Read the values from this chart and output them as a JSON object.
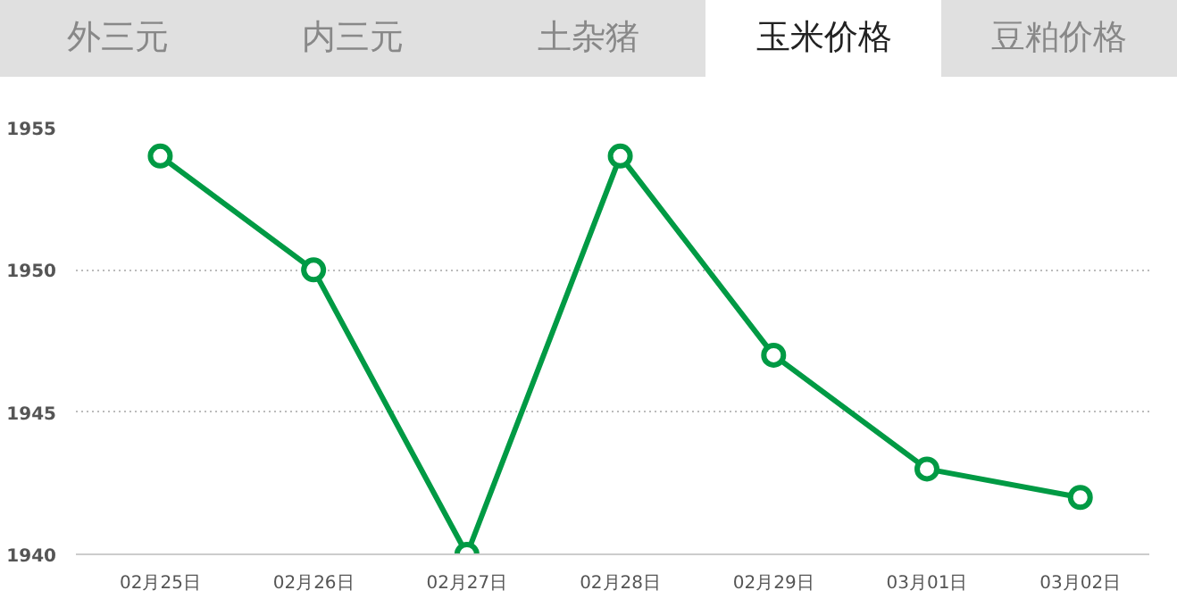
{
  "chart_data": {
    "type": "line",
    "annotations": [
      "外三元",
      "内三元",
      "土杂猪",
      "玉米价格",
      "豆粕价格"
    ],
    "categories": [
      "02月25日",
      "02月26日",
      "02月27日",
      "02月28日",
      "02月29日",
      "03月01日",
      "03月02日"
    ],
    "series": [
      {
        "color": "#009a44",
        "values": [
          1954,
          1950,
          1940,
          1954,
          1947,
          1943,
          1942
        ]
      }
    ],
    "ylim": [
      1940,
      1955
    ],
    "yticks": [
      1940,
      1945,
      1950,
      1955
    ],
    "grid": "y",
    "marker": "circle",
    "line_style": "solid"
  }
}
